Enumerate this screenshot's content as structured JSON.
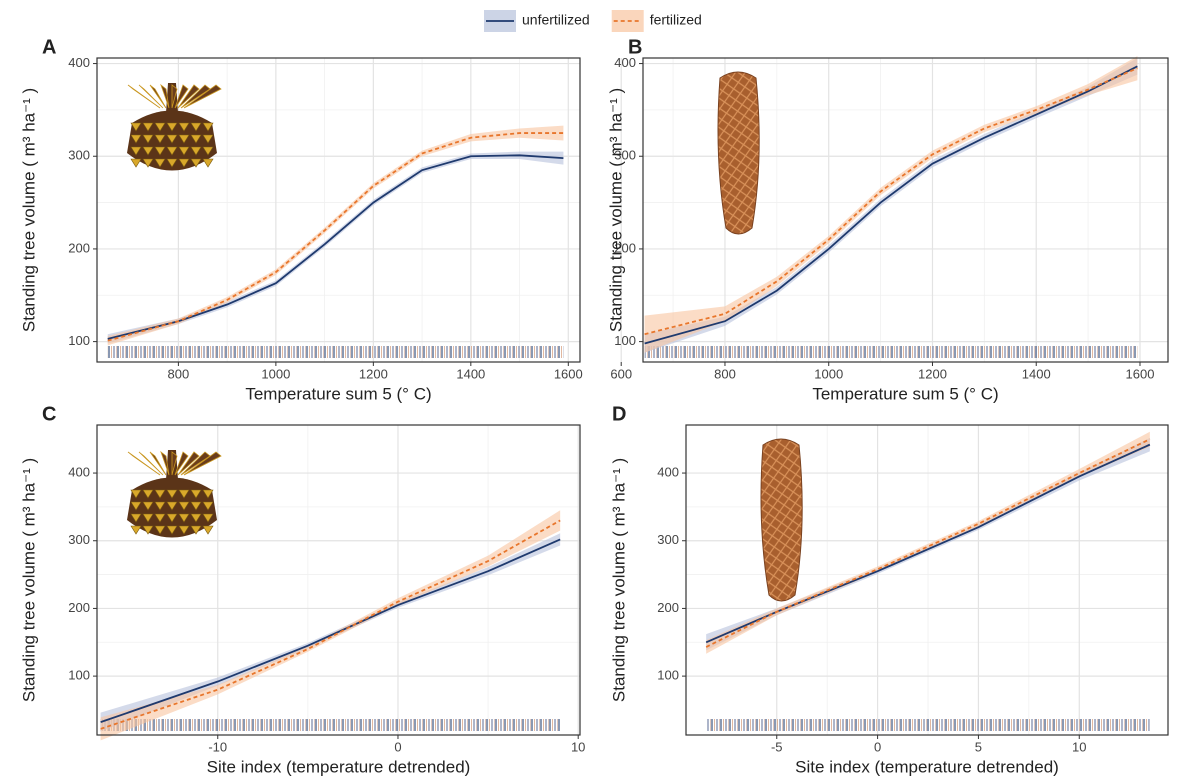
{
  "chart_data": [
    {
      "type": "line",
      "label": "A",
      "xlabel": "Temperature sum 5 (° C)",
      "ylabel": "Standing tree volume ( m³ ha⁻¹ )",
      "xlim": [
        633,
        1624
      ],
      "ylim": [
        78,
        406
      ],
      "xticks": [
        800,
        1000,
        1200,
        1400,
        1600
      ],
      "yticks": [
        100,
        200,
        300,
        400
      ],
      "grid": true,
      "x": [
        655,
        800,
        900,
        1000,
        1100,
        1200,
        1300,
        1400,
        1500,
        1590
      ],
      "series": [
        {
          "name": "unfertilized",
          "color": "#1f3a6e",
          "band_color": "#b7c2dc",
          "dash": false,
          "values": [
            103,
            122,
            140,
            163,
            205,
            250,
            285,
            300,
            301,
            298
          ],
          "lower": [
            98,
            119,
            137,
            160,
            202,
            247,
            282,
            297,
            297,
            291
          ],
          "upper": [
            108,
            125,
            143,
            166,
            208,
            253,
            288,
            303,
            305,
            305
          ]
        },
        {
          "name": "fertilized",
          "color": "#e8762c",
          "band_color": "#f8c4a0",
          "dash": true,
          "values": [
            101,
            122,
            145,
            175,
            220,
            268,
            303,
            320,
            325,
            325
          ],
          "lower": [
            96,
            119,
            142,
            172,
            217,
            265,
            300,
            316,
            320,
            317
          ],
          "upper": [
            106,
            125,
            148,
            178,
            223,
            271,
            306,
            324,
            330,
            333
          ]
        }
      ]
    },
    {
      "type": "line",
      "label": "B",
      "xlabel": "Temperature sum 5 (° C)",
      "ylabel": "Standing tree volume ( m³ ha⁻¹ )",
      "xlim": [
        642,
        1654
      ],
      "ylim": [
        78,
        406
      ],
      "xticks": [
        600,
        800,
        1000,
        1200,
        1400,
        1600
      ],
      "yticks": [
        100,
        200,
        300,
        400
      ],
      "grid": true,
      "x": [
        645,
        800,
        900,
        1000,
        1100,
        1200,
        1300,
        1400,
        1500,
        1595
      ],
      "series": [
        {
          "color": "#1f3a6e",
          "band_color": "#b7c2dc",
          "dash": false,
          "values": [
            98,
            122,
            155,
            200,
            250,
            292,
            320,
            345,
            370,
            397
          ],
          "lower": [
            88,
            117,
            151,
            196,
            246,
            288,
            316,
            341,
            365,
            388
          ],
          "upper": [
            108,
            127,
            159,
            204,
            254,
            296,
            324,
            349,
            375,
            406
          ]
        },
        {
          "color": "#e8762c",
          "band_color": "#f8c4a0",
          "dash": true,
          "values": [
            108,
            130,
            165,
            210,
            262,
            302,
            330,
            350,
            372,
            395
          ],
          "lower": [
            88,
            122,
            160,
            206,
            258,
            298,
            326,
            346,
            366,
            382
          ],
          "upper": [
            128,
            138,
            170,
            214,
            266,
            306,
            334,
            354,
            378,
            408
          ]
        }
      ]
    },
    {
      "type": "line",
      "label": "C",
      "xlabel": "Site index (temperature detrended)",
      "ylabel": "Standing tree volume ( m³ ha⁻¹ )",
      "xlim": [
        -16.7,
        10.1
      ],
      "ylim": [
        13,
        471
      ],
      "xticks": [
        -10,
        0,
        10
      ],
      "yticks": [
        100,
        200,
        300,
        400
      ],
      "grid": true,
      "x": [
        -16.5,
        -10,
        -5,
        0,
        5,
        9
      ],
      "series": [
        {
          "color": "#1f3a6e",
          "band_color": "#b7c2dc",
          "dash": false,
          "values": [
            32,
            92,
            145,
            205,
            255,
            302
          ],
          "lower": [
            18,
            86,
            141,
            201,
            249,
            293
          ],
          "upper": [
            46,
            98,
            149,
            209,
            261,
            311
          ]
        },
        {
          "color": "#e8762c",
          "band_color": "#f8c4a0",
          "dash": true,
          "values": [
            22,
            80,
            140,
            210,
            270,
            330
          ],
          "lower": [
            5,
            73,
            136,
            205,
            262,
            315
          ],
          "upper": [
            39,
            87,
            144,
            215,
            278,
            345
          ]
        }
      ]
    },
    {
      "type": "line",
      "label": "D",
      "xlabel": "Site index (temperature detrended)",
      "ylabel": "Standing tree volume ( m³ ha⁻¹ )",
      "xlim": [
        -9.5,
        14.4
      ],
      "ylim": [
        13,
        471
      ],
      "xticks": [
        -5,
        0,
        5,
        10
      ],
      "yticks": [
        100,
        200,
        300,
        400
      ],
      "grid": true,
      "x": [
        -8.5,
        -5,
        0,
        5,
        10,
        13.5
      ],
      "series": [
        {
          "color": "#1f3a6e",
          "band_color": "#b7c2dc",
          "dash": false,
          "values": [
            150,
            195,
            255,
            320,
            395,
            442
          ],
          "lower": [
            138,
            190,
            251,
            316,
            389,
            432
          ],
          "upper": [
            162,
            200,
            259,
            324,
            401,
            452
          ]
        },
        {
          "color": "#e8762c",
          "band_color": "#f8c4a0",
          "dash": true,
          "values": [
            143,
            195,
            258,
            325,
            400,
            450
          ],
          "lower": [
            133,
            190,
            254,
            321,
            394,
            439
          ],
          "upper": [
            153,
            200,
            262,
            329,
            406,
            461
          ]
        }
      ]
    }
  ]
}
